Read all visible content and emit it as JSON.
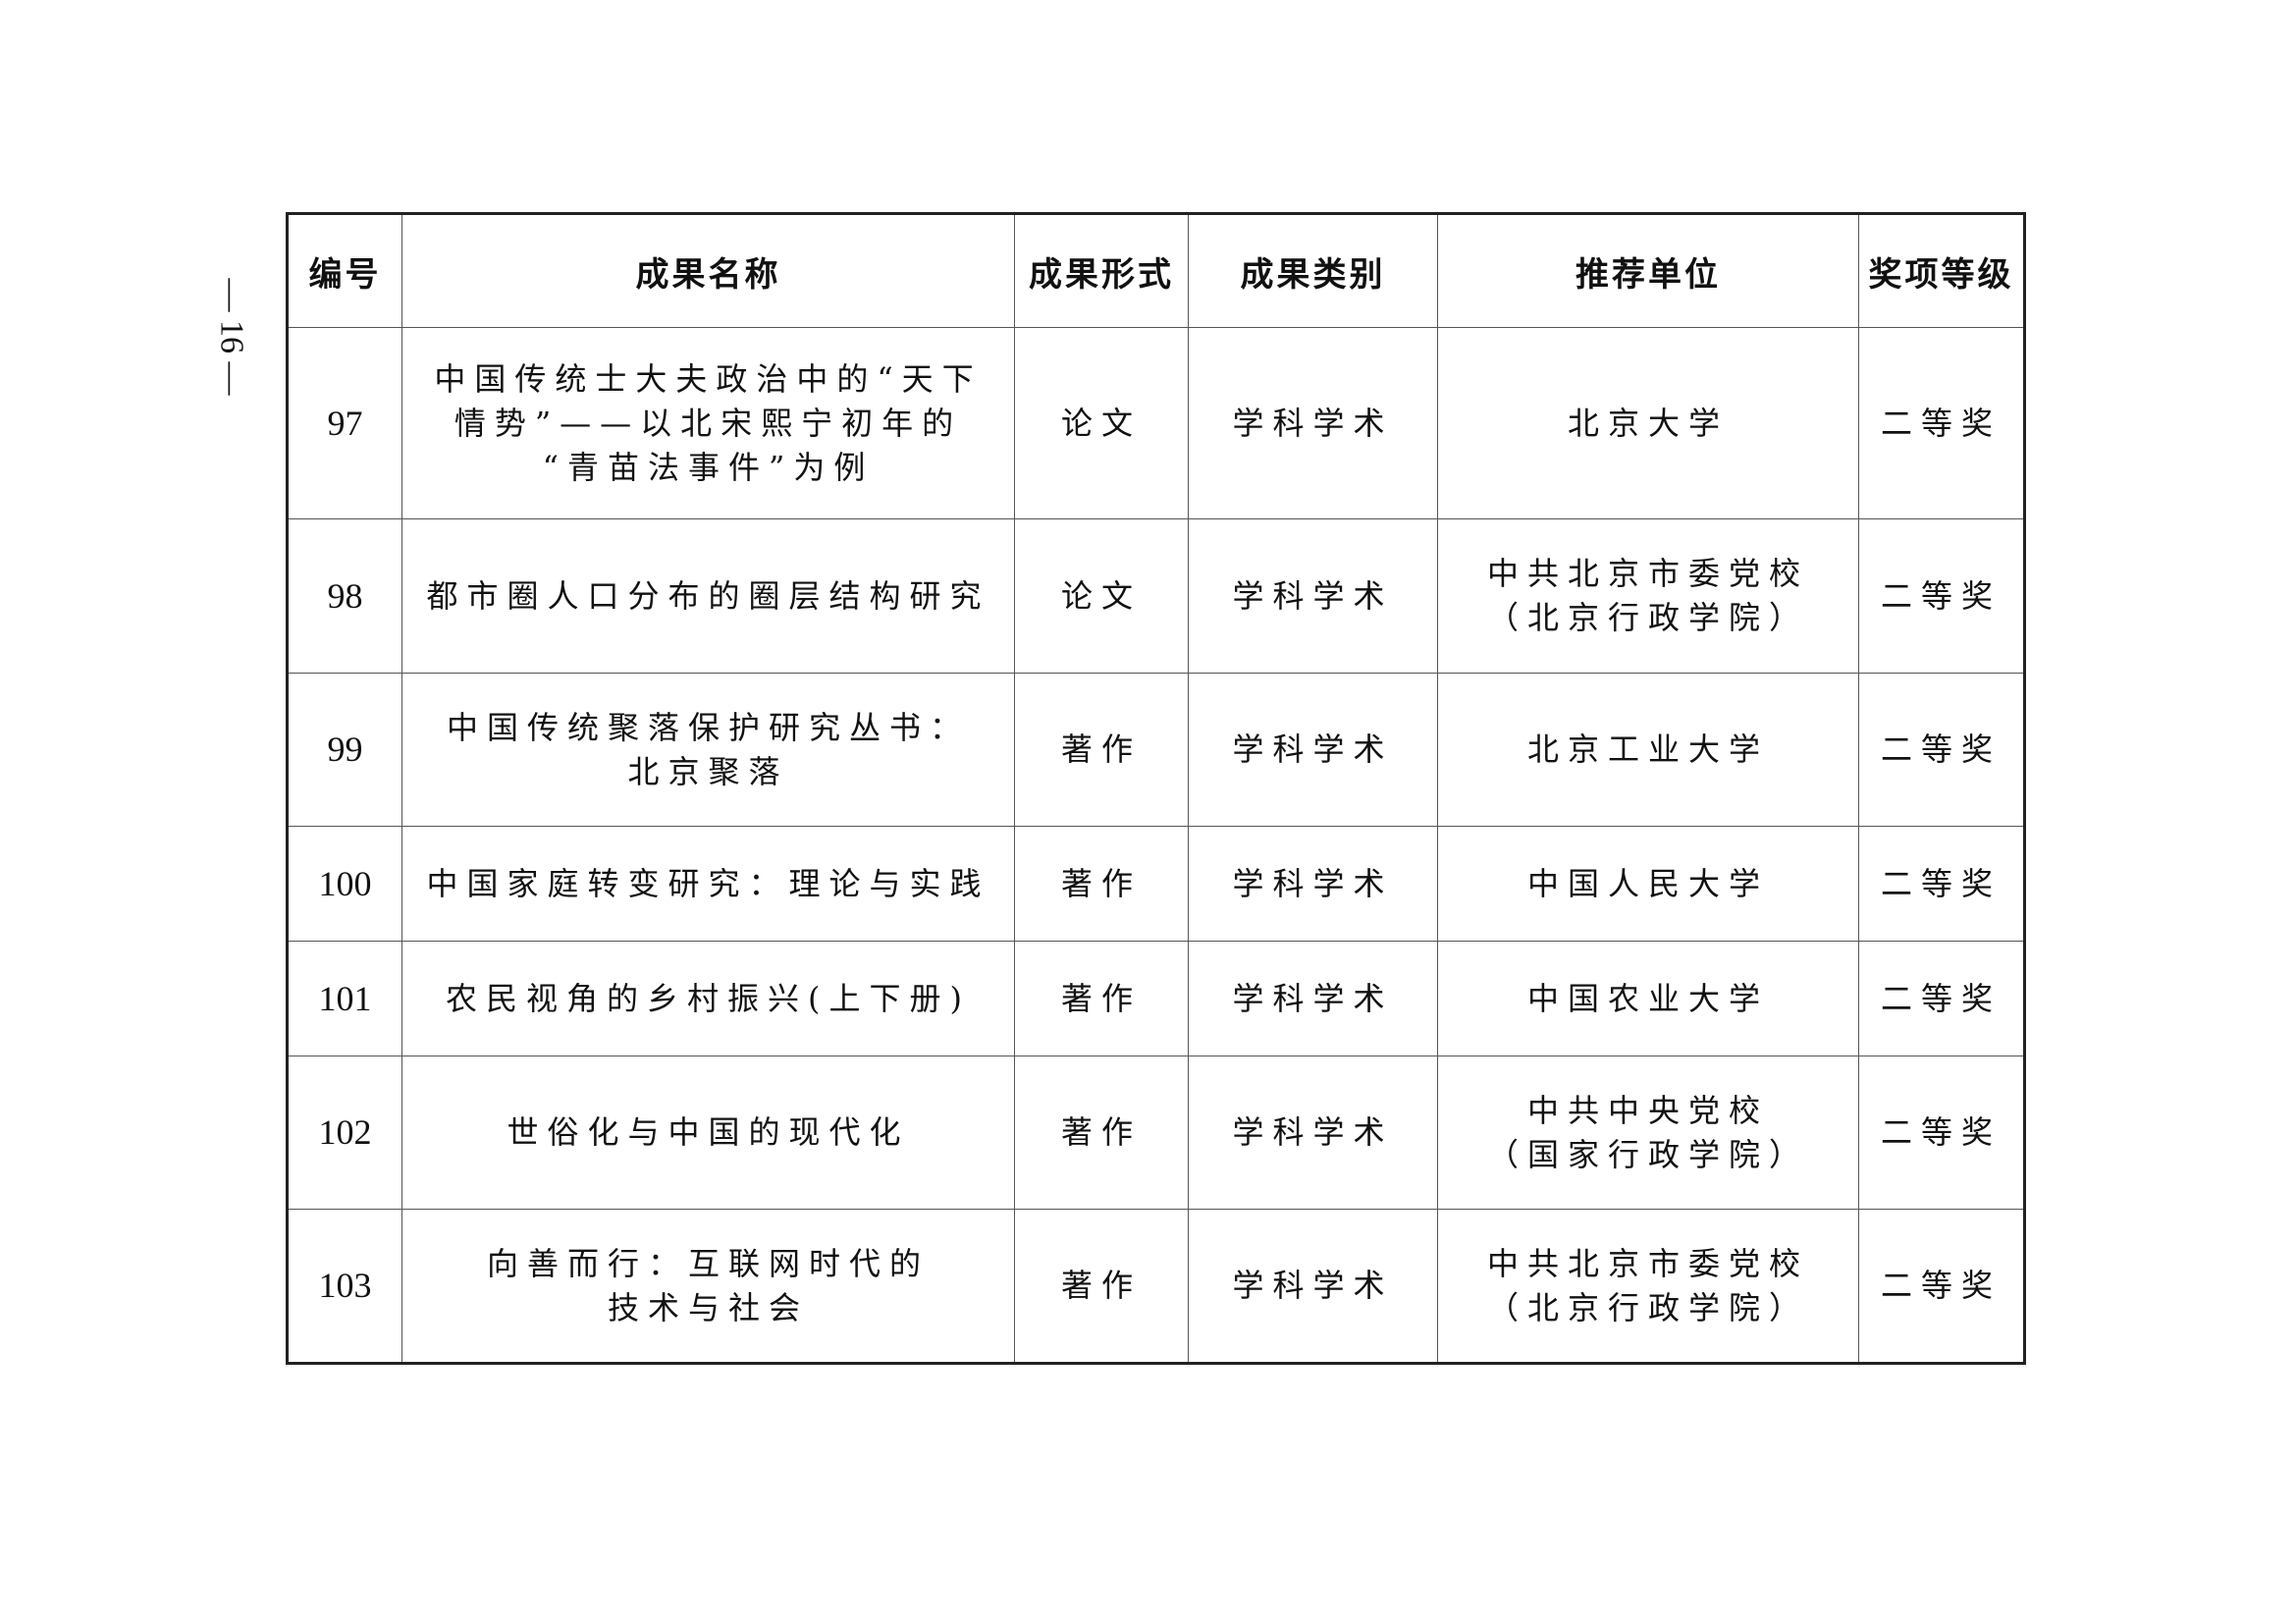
{
  "page_number": "— 16 —",
  "table": {
    "headers": [
      "编号",
      "成果名称",
      "成果形式",
      "成果类别",
      "推荐单位",
      "奖项等级"
    ],
    "rows": [
      {
        "id": "97",
        "title": [
          "中国传统士大夫政治中的“天下",
          "情势”——以北宋熙宁初年的",
          "“青苗法事件”为例"
        ],
        "form": "论文",
        "category": "学科学术",
        "unit": [
          "北京大学"
        ],
        "award": "二等奖"
      },
      {
        "id": "98",
        "title": [
          "都市圈人口分布的圈层结构研究"
        ],
        "form": "论文",
        "category": "学科学术",
        "unit": [
          "中共北京市委党校",
          "（北京行政学院）"
        ],
        "award": "二等奖"
      },
      {
        "id": "99",
        "title": [
          "中国传统聚落保护研究丛书：",
          "北京聚落"
        ],
        "form": "著作",
        "category": "学科学术",
        "unit": [
          "北京工业大学"
        ],
        "award": "二等奖"
      },
      {
        "id": "100",
        "title": [
          "中国家庭转变研究：理论与实践"
        ],
        "form": "著作",
        "category": "学科学术",
        "unit": [
          "中国人民大学"
        ],
        "award": "二等奖"
      },
      {
        "id": "101",
        "title": [
          "农民视角的乡村振兴(上下册)"
        ],
        "form": "著作",
        "category": "学科学术",
        "unit": [
          "中国农业大学"
        ],
        "award": "二等奖"
      },
      {
        "id": "102",
        "title": [
          "世俗化与中国的现代化"
        ],
        "form": "著作",
        "category": "学科学术",
        "unit": [
          "中共中央党校",
          "（国家行政学院）"
        ],
        "award": "二等奖"
      },
      {
        "id": "103",
        "title": [
          "向善而行：互联网时代的",
          "技术与社会"
        ],
        "form": "著作",
        "category": "学科学术",
        "unit": [
          "中共北京市委党校",
          "（北京行政学院）"
        ],
        "award": "二等奖"
      }
    ]
  }
}
